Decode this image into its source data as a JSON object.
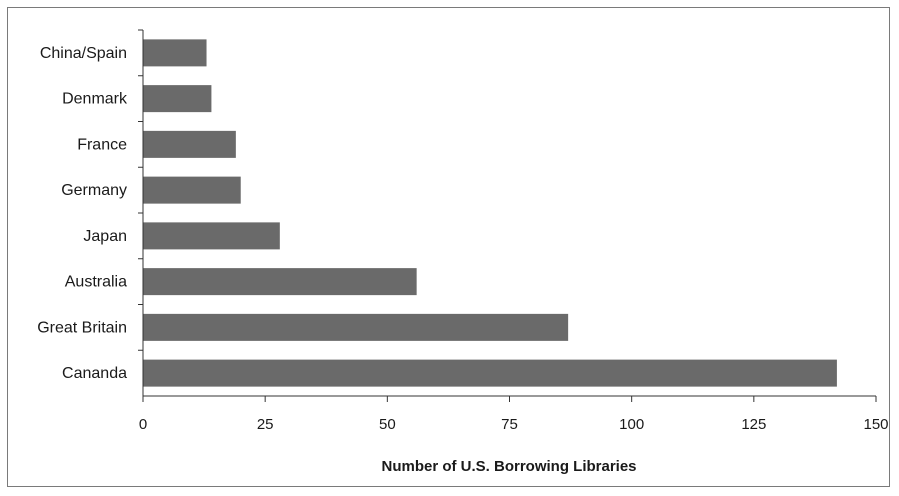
{
  "chart_data": {
    "type": "bar",
    "orientation": "horizontal",
    "categories": [
      "China/Spain",
      "Denmark",
      "France",
      "Germany",
      "Japan",
      "Australia",
      "Great Britain",
      "Cananda"
    ],
    "values": [
      13,
      14,
      19,
      20,
      28,
      56,
      87,
      142
    ],
    "xlabel": "Number of U.S. Borrowing Libraries",
    "ylabel": "",
    "xlim": [
      0,
      150
    ],
    "xticks": [
      0,
      25,
      50,
      75,
      100,
      125,
      150
    ],
    "grid": false,
    "legend": "none",
    "bar_color": "#6a6a6a"
  }
}
